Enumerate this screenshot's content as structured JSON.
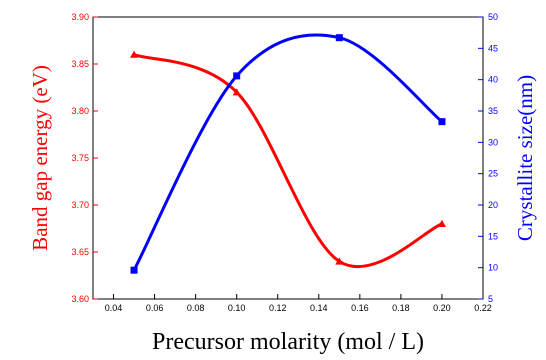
{
  "chart_data": {
    "type": "line",
    "x": [
      0.05,
      0.1,
      0.15,
      0.2
    ],
    "xlabel": "Precursor molarity (mol / L)",
    "xlim": [
      0.03,
      0.22
    ],
    "x_ticks": [
      "0.04",
      "0.06",
      "0.08",
      "0.10",
      "0.12",
      "0.14",
      "0.16",
      "0.18",
      "0.20",
      "0.22"
    ],
    "series": [
      {
        "axis": "left",
        "color": "#ff0000",
        "marker": "triangle",
        "values": [
          3.86,
          3.82,
          3.64,
          3.68
        ]
      },
      {
        "axis": "right",
        "color": "#0000ff",
        "marker": "square",
        "values": [
          9.6,
          40.6,
          46.7,
          33.3
        ]
      }
    ],
    "ylabel_left": "Band gap energy (eV)",
    "ylim_left": [
      3.6,
      3.9
    ],
    "y_left_ticks": [
      "3.60",
      "3.65",
      "3.70",
      "3.75",
      "3.80",
      "3.85",
      "3.90"
    ],
    "ylabel_right": "Crystallite size(nm)",
    "ylim_right": [
      5,
      50
    ],
    "y_right_ticks": [
      "5",
      "10",
      "15",
      "20",
      "25",
      "30",
      "35",
      "40",
      "45",
      "50"
    ],
    "grid": false
  }
}
